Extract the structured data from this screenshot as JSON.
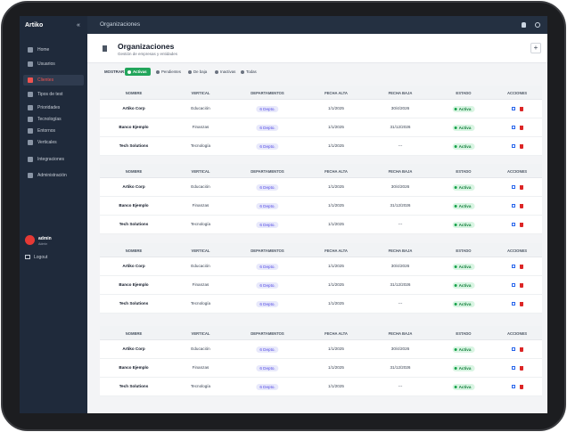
{
  "sidebar": {
    "brand": "Artiko",
    "collapse": "«",
    "menu": [
      "Home",
      "Usuarios",
      "Clientes",
      "Tipos de test",
      "Prioridades",
      "Tecnologías",
      "Entornos",
      "Verticales",
      "Integraciones",
      "Administración"
    ],
    "user": {
      "name": "admin",
      "role": "Admin"
    },
    "logout": "Logout"
  },
  "topbar": {
    "title": "Organizaciones"
  },
  "header": {
    "title": "Organizaciones",
    "subtitle": "Gestión de empresas y entidades",
    "add": "+"
  },
  "filters": {
    "label": "MOSTRAR:",
    "options": [
      "Activas",
      "Pendientes",
      "De baja",
      "Inactivas",
      "Todas"
    ]
  },
  "tables": [
    {
      "columns": [
        "NOMBRE",
        "VERTICAL",
        "DEPARTAMENTOS",
        "FECHA ALTA",
        "FECHA BAJA",
        "ESTADO",
        "ACCIONES"
      ],
      "rows": [
        [
          "Artiko Corp",
          "Educación",
          "6 Depto.",
          "1/1/2025",
          "30/4/2026",
          "Activa"
        ],
        [
          "Banco Ejemplo",
          "Finanzas",
          "6 Depto.",
          "1/1/2025",
          "31/12/2026",
          "Activa"
        ],
        [
          "Tech Solutions",
          "Tecnología",
          "6 Depto.",
          "1/1/2025",
          "---",
          "Activa"
        ]
      ]
    },
    {
      "columns": [
        "NOMBRE",
        "VERTICAL",
        "DEPARTAMENTOS",
        "FECHA ALTA",
        "FECHA BAJA",
        "ESTADO",
        "ACCIONES"
      ],
      "rows": [
        [
          "Artiko Corp",
          "Educación",
          "6 Depto.",
          "1/1/2025",
          "30/4/2026",
          "Activa"
        ],
        [
          "Banco Ejemplo",
          "Finanzas",
          "6 Depto.",
          "1/1/2025",
          "31/12/2026",
          "Activa"
        ],
        [
          "Tech Solutions",
          "Tecnología",
          "6 Depto.",
          "1/1/2025",
          "---",
          "Activa"
        ]
      ]
    },
    {
      "columns": [
        "NOMBRE",
        "VERTICAL",
        "DEPARTAMENTOS",
        "FECHA ALTA",
        "FECHA BAJA",
        "ESTADO",
        "ACCIONES"
      ],
      "rows": [
        [
          "Artiko Corp",
          "Educación",
          "6 Depto.",
          "1/1/2025",
          "30/4/2026",
          "Activa"
        ],
        [
          "Banco Ejemplo",
          "Finanzas",
          "6 Depto.",
          "1/1/2025",
          "31/12/2026",
          "Activa"
        ],
        [
          "Tech Solutions",
          "Tecnología",
          "6 Depto.",
          "1/1/2025",
          "---",
          "Activa"
        ]
      ]
    },
    {
      "columns": [
        "NOMBRE",
        "VERTICAL",
        "DEPARTAMENTOS",
        "FECHA ALTA",
        "FECHA BAJA",
        "ESTADO",
        "ACCIONES"
      ],
      "rows": [
        [
          "Artiko Corp",
          "Educación",
          "6 Depto.",
          "1/1/2025",
          "30/4/2026",
          "Activa"
        ],
        [
          "Banco Ejemplo",
          "Finanzas",
          "6 Depto.",
          "1/1/2025",
          "31/12/2026",
          "Activa"
        ],
        [
          "Tech Solutions",
          "Tecnología",
          "6 Depto.",
          "1/1/2025",
          "---",
          "Activa"
        ]
      ]
    }
  ]
}
